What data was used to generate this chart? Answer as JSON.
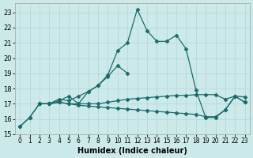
{
  "xlabel": "Humidex (Indice chaleur)",
  "background_color": "#cdeaea",
  "grid_color": "#b8d8d8",
  "line_color": "#1a6b6b",
  "xlim": [
    -0.5,
    23.5
  ],
  "ylim": [
    15,
    23.6
  ],
  "yticks": [
    15,
    16,
    17,
    18,
    19,
    20,
    21,
    22,
    23
  ],
  "xticks": [
    0,
    1,
    2,
    3,
    4,
    5,
    6,
    7,
    8,
    9,
    10,
    11,
    12,
    13,
    14,
    15,
    16,
    17,
    18,
    19,
    20,
    21,
    22,
    23
  ],
  "lines": [
    {
      "x": [
        0,
        1,
        2,
        3,
        4,
        5,
        6,
        7,
        8,
        9,
        10,
        11,
        12,
        13,
        14,
        15,
        16,
        17,
        18,
        19,
        20,
        21,
        22,
        23
      ],
      "y": [
        15.5,
        16.1,
        17.0,
        17.0,
        17.2,
        17.5,
        17.0,
        17.8,
        18.2,
        18.9,
        20.5,
        21.0,
        23.2,
        21.8,
        21.1,
        21.1,
        21.5,
        20.6,
        17.9,
        16.1,
        16.1,
        16.6,
        17.5,
        17.1
      ]
    },
    {
      "x": [
        2,
        3,
        4,
        5,
        6,
        7,
        8,
        9,
        10,
        11
      ],
      "y": [
        17.0,
        17.0,
        17.3,
        17.2,
        17.5,
        17.8,
        18.2,
        18.8,
        19.5,
        19.0
      ]
    },
    {
      "x": [
        2,
        3,
        4,
        5,
        6,
        7,
        8,
        9,
        10,
        11,
        12,
        13,
        14,
        15,
        16,
        17,
        18,
        19,
        20,
        21,
        22,
        23
      ],
      "y": [
        17.0,
        17.0,
        17.1,
        17.0,
        17.0,
        17.0,
        17.0,
        17.1,
        17.2,
        17.3,
        17.35,
        17.4,
        17.45,
        17.5,
        17.55,
        17.55,
        17.6,
        17.6,
        17.6,
        17.3,
        17.5,
        17.45
      ]
    },
    {
      "x": [
        0,
        1,
        2,
        3,
        4,
        5,
        6,
        7,
        8,
        9,
        10,
        11,
        12,
        13,
        14,
        15,
        16,
        17,
        18,
        19,
        20,
        21,
        22,
        23
      ],
      "y": [
        15.5,
        16.1,
        17.0,
        17.0,
        17.1,
        17.0,
        16.9,
        16.85,
        16.8,
        16.75,
        16.7,
        16.65,
        16.6,
        16.55,
        16.5,
        16.45,
        16.4,
        16.35,
        16.3,
        16.15,
        16.15,
        16.6,
        17.5,
        17.1
      ]
    }
  ],
  "marker": "D",
  "markersize": 2.5,
  "linewidth": 0.9
}
